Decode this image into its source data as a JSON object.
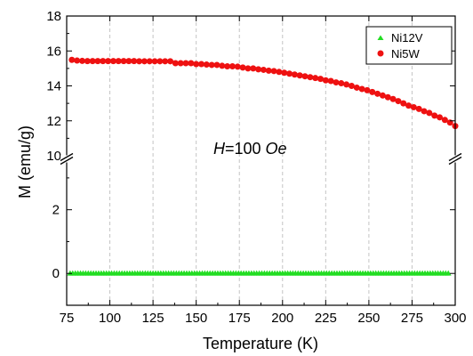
{
  "chart_data": {
    "type": "scatter",
    "xlabel": "Temperature (K)",
    "ylabel": "M (emu/g)",
    "annotation": {
      "italic_part": "H",
      "rest_part": "=100 ",
      "unit_italic": "Oe"
    },
    "xlim": [
      75,
      300
    ],
    "x_ticks": [
      75,
      100,
      125,
      150,
      175,
      200,
      225,
      250,
      275,
      300
    ],
    "broken_y_axis": true,
    "y_upper": {
      "ylim": [
        10,
        18
      ],
      "ticks": [
        10,
        12,
        14,
        16,
        18
      ]
    },
    "y_lower": {
      "ylim": [
        -1,
        3.5
      ],
      "ticks": [
        0,
        2
      ]
    },
    "grid": "vertical dashed",
    "legend_placement": "top-right",
    "series": [
      {
        "name": "Ni12V",
        "marker": "triangle",
        "color": "#22dd22",
        "x_range": [
          77,
          296
        ],
        "x_step": 1.5,
        "y": 0.0
      },
      {
        "name": "Ni5W",
        "marker": "circle",
        "color": "#ee1111",
        "x": [
          78,
          81,
          84,
          87,
          90,
          93,
          96,
          99,
          102,
          105,
          108,
          111,
          114,
          117,
          120,
          123,
          126,
          129,
          132,
          135,
          138,
          141,
          144,
          147,
          150,
          153,
          156,
          159,
          162,
          165,
          168,
          171,
          174,
          177,
          180,
          183,
          186,
          189,
          192,
          195,
          198,
          201,
          204,
          207,
          210,
          213,
          216,
          219,
          222,
          225,
          228,
          231,
          234,
          237,
          240,
          243,
          246,
          249,
          252,
          255,
          258,
          261,
          264,
          267,
          270,
          273,
          276,
          279,
          282,
          285,
          288,
          291,
          294,
          297,
          300
        ],
        "y": [
          15.49,
          15.45,
          15.43,
          15.42,
          15.42,
          15.42,
          15.42,
          15.42,
          15.42,
          15.42,
          15.42,
          15.42,
          15.42,
          15.41,
          15.41,
          15.41,
          15.41,
          15.41,
          15.41,
          15.41,
          15.3,
          15.3,
          15.3,
          15.3,
          15.25,
          15.25,
          15.22,
          15.2,
          15.2,
          15.15,
          15.12,
          15.12,
          15.1,
          15.05,
          15.0,
          15.0,
          14.95,
          14.92,
          14.87,
          14.85,
          14.8,
          14.75,
          14.7,
          14.65,
          14.6,
          14.55,
          14.5,
          14.45,
          14.4,
          14.32,
          14.28,
          14.2,
          14.15,
          14.08,
          14.0,
          13.9,
          13.82,
          13.75,
          13.65,
          13.55,
          13.45,
          13.35,
          13.25,
          13.13,
          13.0,
          12.87,
          12.78,
          12.68,
          12.55,
          12.45,
          12.3,
          12.2,
          12.05,
          11.9,
          11.7
        ]
      }
    ]
  }
}
